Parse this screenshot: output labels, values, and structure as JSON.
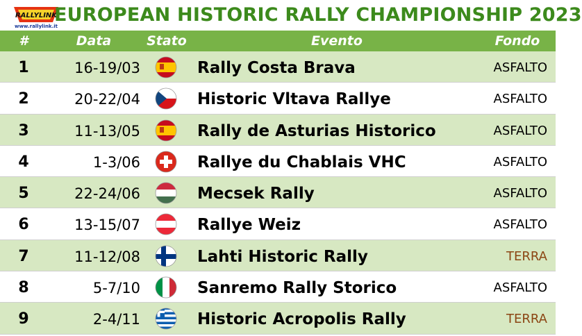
{
  "logo": {
    "text": "RALLY LINK",
    "url_text": "www.rallylink.it"
  },
  "title": "EUROPEAN HISTORIC RALLY CHAMPIONSHIP 2023",
  "columns": {
    "num": "#",
    "date": "Data",
    "stato": "Stato",
    "evento": "Evento",
    "fondo": "Fondo"
  },
  "colors": {
    "header": "#78b347",
    "odd_row": "#d7e8c2",
    "title": "#3c8a1c",
    "terra": "#8b4513"
  },
  "rows": [
    {
      "num": "1",
      "date": "16-19/03",
      "flag": "spain-flag",
      "event": "Rally Costa Brava",
      "surface": "ASFALTO"
    },
    {
      "num": "2",
      "date": "20-22/04",
      "flag": "czech-flag",
      "event": "Historic Vltava Rallye",
      "surface": "ASFALTO"
    },
    {
      "num": "3",
      "date": "11-13/05",
      "flag": "spain-flag",
      "event": "Rally de Asturias Historico",
      "surface": "ASFALTO"
    },
    {
      "num": "4",
      "date": "1-3/06",
      "flag": "switzerland-flag",
      "event": "Rallye du Chablais VHC",
      "surface": "ASFALTO"
    },
    {
      "num": "5",
      "date": "22-24/06",
      "flag": "hungary-flag",
      "event": "Mecsek Rally",
      "surface": "ASFALTO"
    },
    {
      "num": "6",
      "date": "13-15/07",
      "flag": "austria-flag",
      "event": "Rallye Weiz",
      "surface": "ASFALTO"
    },
    {
      "num": "7",
      "date": "11-12/08",
      "flag": "finland-flag",
      "event": "Lahti Historic Rally",
      "surface": "TERRA"
    },
    {
      "num": "8",
      "date": "5-7/10",
      "flag": "italy-flag",
      "event": "Sanremo Rally Storico",
      "surface": "ASFALTO"
    },
    {
      "num": "9",
      "date": "2-4/11",
      "flag": "greece-flag",
      "event": "Historic Acropolis Rally",
      "surface": "TERRA"
    }
  ]
}
